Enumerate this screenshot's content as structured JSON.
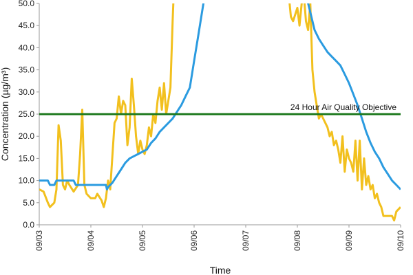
{
  "chart_data": {
    "type": "line",
    "xlabel": "Time",
    "ylabel": "Concentration (µg/m³)",
    "ylim": [
      0,
      50
    ],
    "xlim": [
      "09/03",
      "09/10"
    ],
    "grid": false,
    "x_ticks": [
      "09/03",
      "09/04",
      "09/05",
      "09/06",
      "09/07",
      "09/08",
      "09/09",
      "09/10"
    ],
    "y_ticks": [
      "0.0",
      "5.0",
      "10.0",
      "15.0",
      "20.0",
      "25.0",
      "30.0",
      "35.0",
      "40.0",
      "45.0",
      "50.0"
    ],
    "colors": {
      "yellow": "#f2c01e",
      "blue": "#2b9be0",
      "objective": "#1f7a1f"
    },
    "objective": {
      "value": 25,
      "label": "24 Hour Air Quality Objective"
    },
    "series": [
      {
        "color": "#f2c01e",
        "points": [
          [
            "09/03 00:00",
            8
          ],
          [
            "09/03 02:00",
            7.5
          ],
          [
            "09/03 04:00",
            5
          ],
          [
            "09/03 05:00",
            4
          ],
          [
            "09/03 07:00",
            5
          ],
          [
            "09/03 08:00",
            8
          ],
          [
            "09/03 09:00",
            22.5
          ],
          [
            "09/03 10:00",
            19
          ],
          [
            "09/03 11:00",
            9
          ],
          [
            "09/03 12:00",
            8
          ],
          [
            "09/03 13:00",
            10
          ],
          [
            "09/03 14:00",
            9
          ],
          [
            "09/03 16:00",
            7.5
          ],
          [
            "09/03 18:00",
            9
          ],
          [
            "09/03 19:00",
            16
          ],
          [
            "09/03 20:00",
            26
          ],
          [
            "09/03 21:00",
            9
          ],
          [
            "09/03 22:00",
            7
          ],
          [
            "09/04 00:00",
            6
          ],
          [
            "09/04 02:00",
            6
          ],
          [
            "09/04 03:00",
            7
          ],
          [
            "09/04 05:00",
            5.5
          ],
          [
            "09/04 06:00",
            4
          ],
          [
            "09/04 07:00",
            6
          ],
          [
            "09/04 08:00",
            10
          ],
          [
            "09/04 09:00",
            8
          ],
          [
            "09/04 11:00",
            23
          ],
          [
            "09/04 12:00",
            24
          ],
          [
            "09/04 13:00",
            29
          ],
          [
            "09/04 14:00",
            25
          ],
          [
            "09/04 15:00",
            28
          ],
          [
            "09/04 16:00",
            27
          ],
          [
            "09/04 17:00",
            18
          ],
          [
            "09/04 18:00",
            22
          ],
          [
            "09/04 19:00",
            33
          ],
          [
            "09/04 20:00",
            27
          ],
          [
            "09/04 21:00",
            20
          ],
          [
            "09/04 22:00",
            16
          ],
          [
            "09/04 23:00",
            19
          ],
          [
            "09/05 00:00",
            17
          ],
          [
            "09/05 01:00",
            16
          ],
          [
            "09/05 02:00",
            18
          ],
          [
            "09/05 03:00",
            22
          ],
          [
            "09/05 04:00",
            20
          ],
          [
            "09/05 05:00",
            25
          ],
          [
            "09/05 06:00",
            23
          ],
          [
            "09/05 07:00",
            28
          ],
          [
            "09/05 08:00",
            31
          ],
          [
            "09/05 09:00",
            26
          ],
          [
            "09/05 10:00",
            32
          ],
          [
            "09/05 11:00",
            25
          ],
          [
            "09/05 12:00",
            28
          ],
          [
            "09/05 13:00",
            31
          ],
          [
            "09/05 14:00",
            46
          ],
          [
            "09/05 14:30",
            52
          ],
          [
            "09/07 20:00",
            52
          ],
          [
            "09/07 21:00",
            47
          ],
          [
            "09/07 22:00",
            46
          ],
          [
            "09/08 00:00",
            49
          ],
          [
            "09/08 01:00",
            45
          ],
          [
            "09/08 02:00",
            50
          ],
          [
            "09/08 03:00",
            52
          ],
          [
            "09/08 04:00",
            46
          ],
          [
            "09/08 05:00",
            44
          ],
          [
            "09/08 06:00",
            50
          ],
          [
            "09/08 07:00",
            35
          ],
          [
            "09/08 08:00",
            30
          ],
          [
            "09/08 09:00",
            27
          ],
          [
            "09/08 10:00",
            24
          ],
          [
            "09/08 11:00",
            25
          ],
          [
            "09/08 12:00",
            24
          ],
          [
            "09/08 14:00",
            22
          ],
          [
            "09/08 15:00",
            20
          ],
          [
            "09/08 16:00",
            21
          ],
          [
            "09/08 17:00",
            18
          ],
          [
            "09/08 18:00",
            19
          ],
          [
            "09/08 19:00",
            17
          ],
          [
            "09/08 20:00",
            14
          ],
          [
            "09/08 21:00",
            20
          ],
          [
            "09/08 22:00",
            12
          ],
          [
            "09/08 23:00",
            17
          ],
          [
            "09/09 00:00",
            15
          ],
          [
            "09/09 01:00",
            14
          ],
          [
            "09/09 02:00",
            12
          ],
          [
            "09/09 03:00",
            19
          ],
          [
            "09/09 04:00",
            10
          ],
          [
            "09/09 05:00",
            19
          ],
          [
            "09/09 06:00",
            8
          ],
          [
            "09/09 07:00",
            15
          ],
          [
            "09/09 08:00",
            9
          ],
          [
            "09/09 09:00",
            11
          ],
          [
            "09/09 10:00",
            8
          ],
          [
            "09/09 11:00",
            9
          ],
          [
            "09/09 12:00",
            6
          ],
          [
            "09/09 13:00",
            7
          ],
          [
            "09/09 14:00",
            5
          ],
          [
            "09/09 15:00",
            4
          ],
          [
            "09/09 16:00",
            2
          ],
          [
            "09/09 18:00",
            2
          ],
          [
            "09/09 20:00",
            2
          ],
          [
            "09/09 21:00",
            1
          ],
          [
            "09/09 22:00",
            3
          ],
          [
            "09/10 00:00",
            4
          ]
        ]
      },
      {
        "color": "#2b9be0",
        "points": [
          [
            "09/03 00:00",
            10
          ],
          [
            "09/03 04:00",
            10
          ],
          [
            "09/03 05:00",
            9
          ],
          [
            "09/03 07:00",
            9
          ],
          [
            "09/03 08:00",
            10
          ],
          [
            "09/03 16:00",
            10
          ],
          [
            "09/03 17:00",
            9
          ],
          [
            "09/04 00:00",
            9
          ],
          [
            "09/04 06:00",
            9
          ],
          [
            "09/04 07:00",
            9
          ],
          [
            "09/04 07:30",
            8
          ],
          [
            "09/04 08:00",
            8.5
          ],
          [
            "09/04 10:00",
            9.5
          ],
          [
            "09/04 12:00",
            11
          ],
          [
            "09/04 14:00",
            12.5
          ],
          [
            "09/04 16:00",
            14
          ],
          [
            "09/04 18:00",
            15
          ],
          [
            "09/04 20:00",
            15.5
          ],
          [
            "09/04 22:00",
            16
          ],
          [
            "09/05 00:00",
            16.5
          ],
          [
            "09/05 02:00",
            17
          ],
          [
            "09/05 04:00",
            18.5
          ],
          [
            "09/05 06:00",
            19.5
          ],
          [
            "09/05 08:00",
            21
          ],
          [
            "09/05 10:00",
            22
          ],
          [
            "09/05 12:00",
            23
          ],
          [
            "09/05 14:00",
            24
          ],
          [
            "09/05 16:00",
            25.5
          ],
          [
            "09/05 18:00",
            27
          ],
          [
            "09/05 20:00",
            29
          ],
          [
            "09/05 22:00",
            31
          ],
          [
            "09/06 00:00",
            37
          ],
          [
            "09/06 02:00",
            43
          ],
          [
            "09/06 04:00",
            49
          ],
          [
            "09/06 05:00",
            52
          ],
          [
            "09/08 04:00",
            52
          ],
          [
            "09/08 06:00",
            48
          ],
          [
            "09/08 08:00",
            44
          ],
          [
            "09/08 10:00",
            42
          ],
          [
            "09/08 12:00",
            40.5
          ],
          [
            "09/08 14:00",
            39
          ],
          [
            "09/08 16:00",
            38
          ],
          [
            "09/08 18:00",
            37
          ],
          [
            "09/08 20:00",
            36
          ],
          [
            "09/08 22:00",
            34
          ],
          [
            "09/09 00:00",
            32
          ],
          [
            "09/09 02:00",
            29.5
          ],
          [
            "09/09 04:00",
            27
          ],
          [
            "09/09 06:00",
            24
          ],
          [
            "09/09 08:00",
            21
          ],
          [
            "09/09 10:00",
            18.5
          ],
          [
            "09/09 12:00",
            16.5
          ],
          [
            "09/09 14:00",
            15
          ],
          [
            "09/09 16:00",
            13
          ],
          [
            "09/09 18:00",
            11.5
          ],
          [
            "09/09 20:00",
            10
          ],
          [
            "09/09 22:00",
            9
          ],
          [
            "09/10 00:00",
            8
          ]
        ]
      }
    ]
  }
}
